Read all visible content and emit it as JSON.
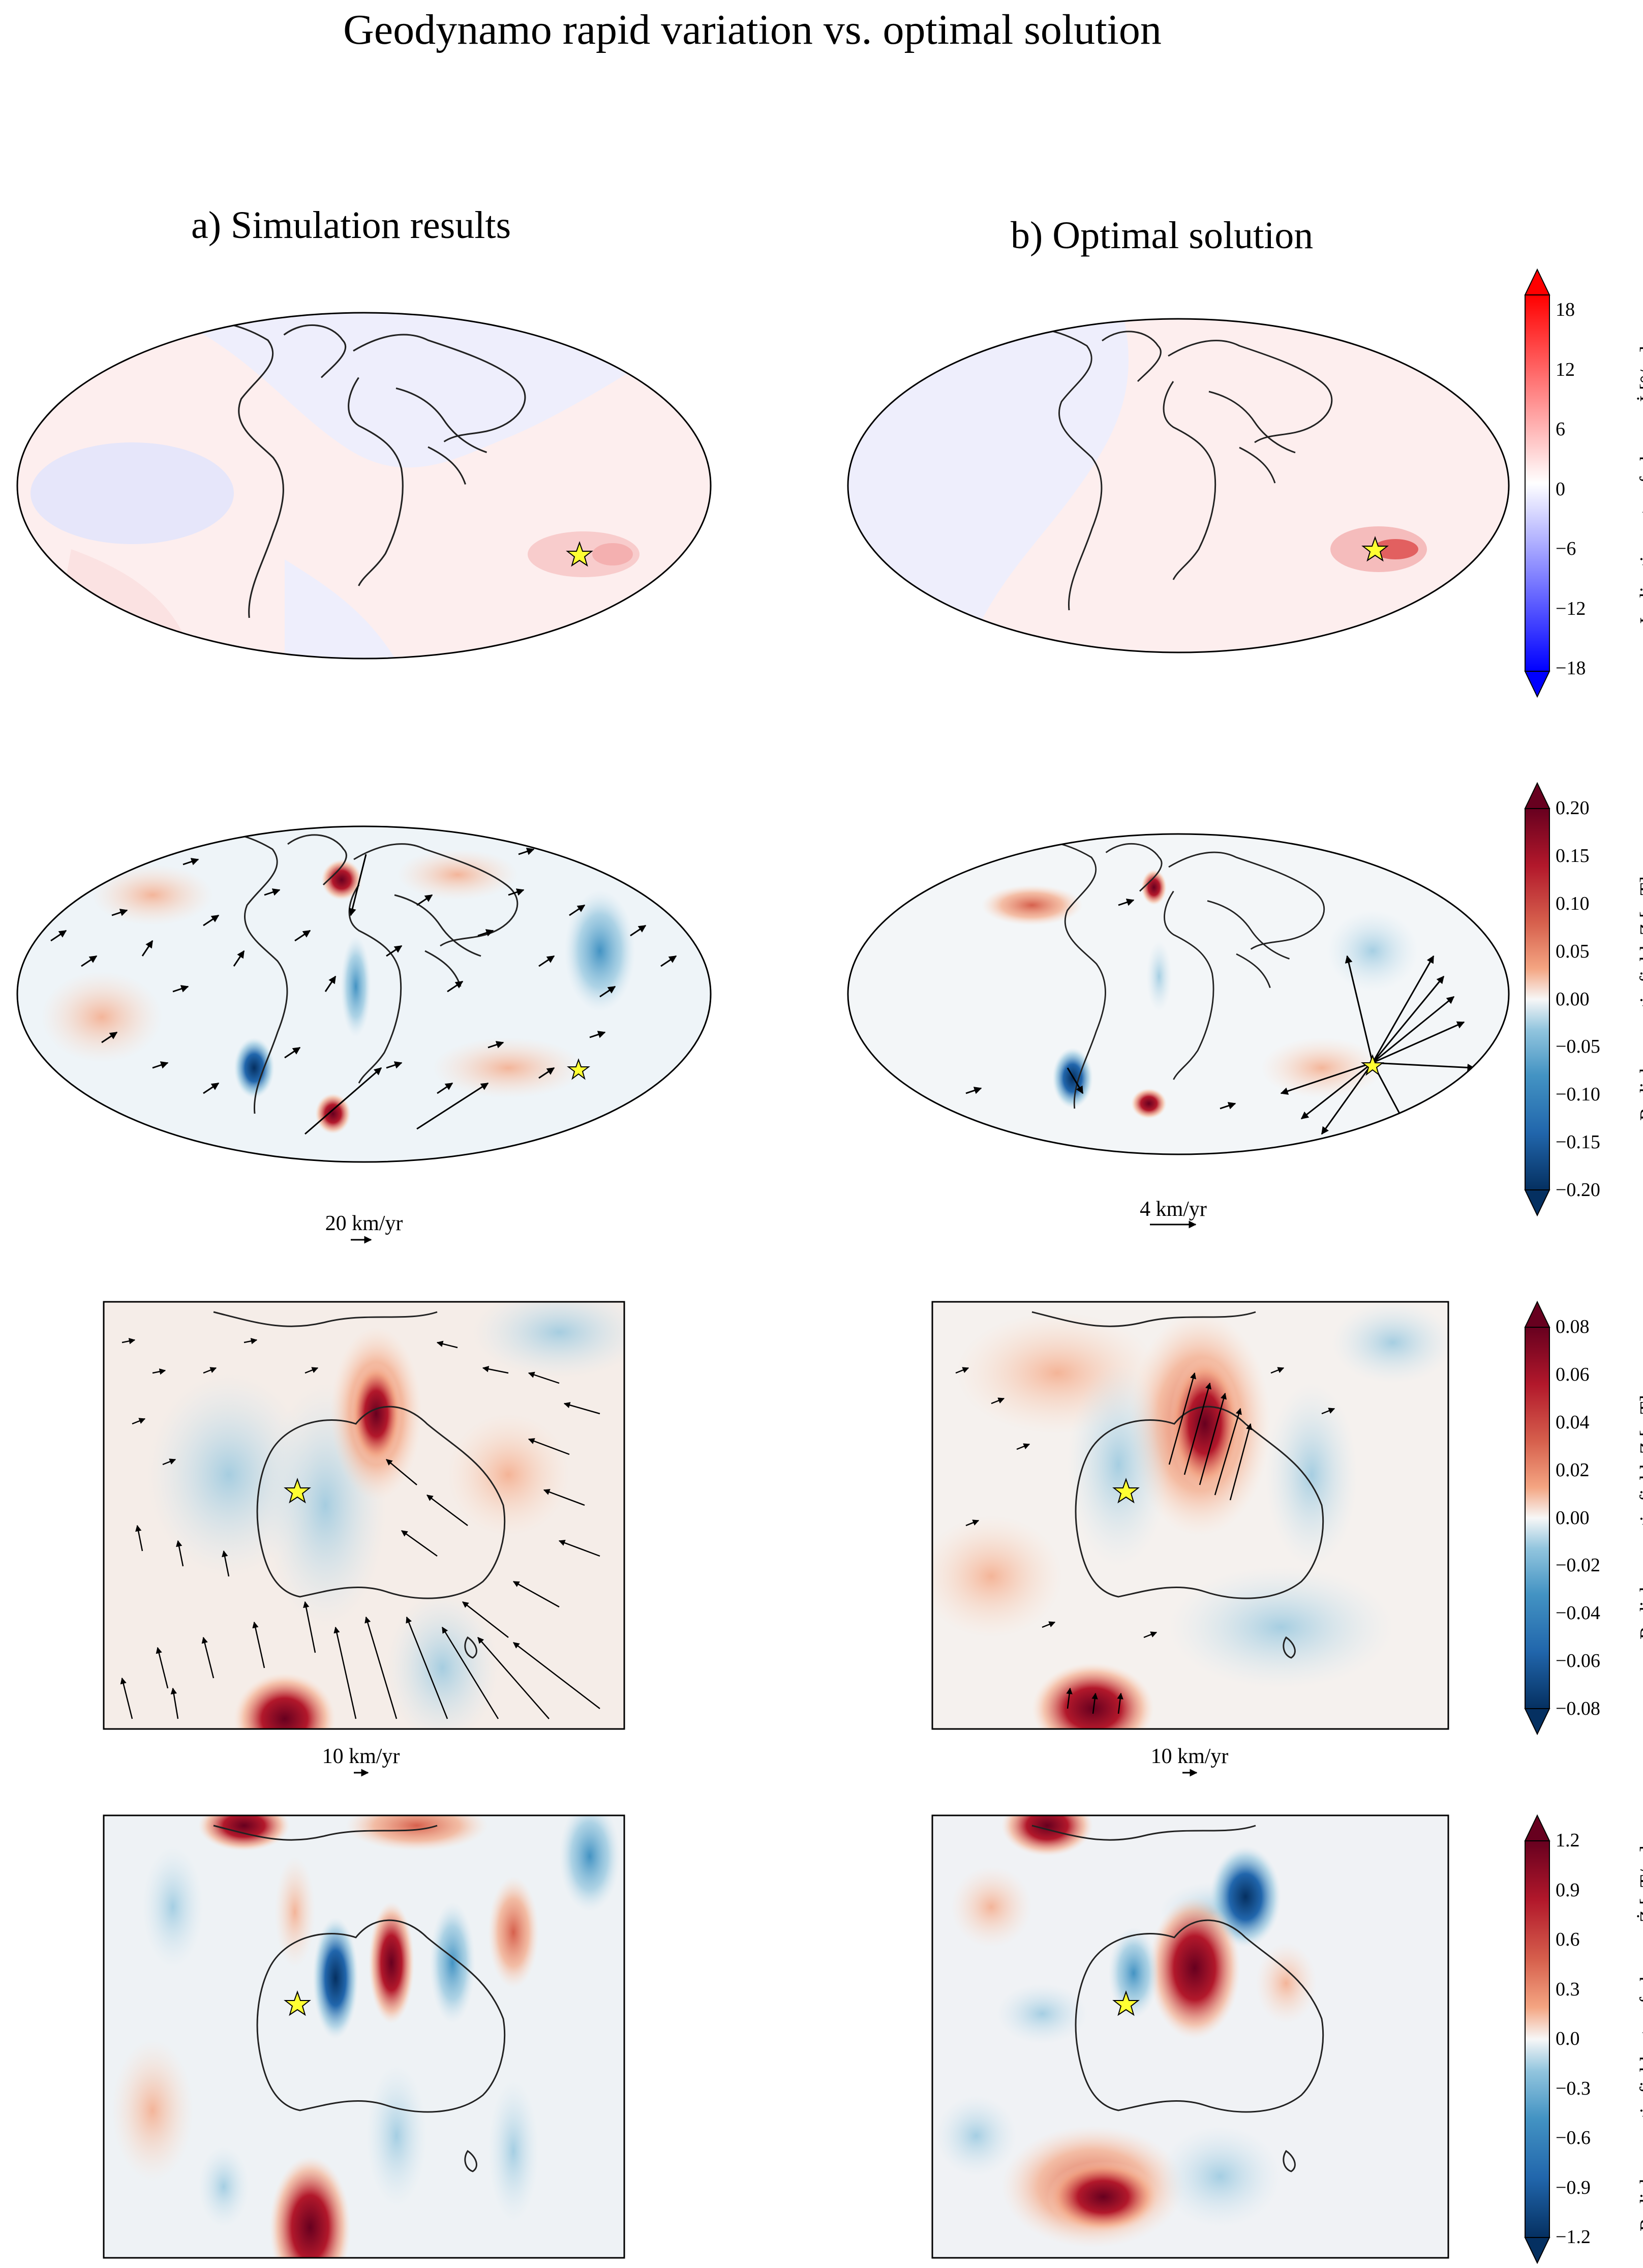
{
  "figure": {
    "title": "Geodynamo rapid variation vs. optimal solution",
    "column_a_title": "a) Simulation results",
    "column_b_title": "b) Optimal solution"
  },
  "rows": [
    {
      "id": "inclination",
      "colorbar": {
        "label": "Inclination rate-of-change, İ [°/yr]",
        "ticks": [
          "18",
          "12",
          "6",
          "0",
          "−6",
          "−12",
          "−18"
        ],
        "cmap": "bwr"
      }
    },
    {
      "id": "radial-global",
      "scale_a": "20 km/yr",
      "scale_b": "4 km/yr",
      "colorbar": {
        "label": "Radial magnetic field, Z  [mT]",
        "ticks": [
          "0.20",
          "0.15",
          "0.10",
          "0.05",
          "0.00",
          "−0.05",
          "−0.10",
          "−0.15",
          "−0.20"
        ],
        "cmap": "RdBu_r"
      }
    },
    {
      "id": "radial-regional",
      "scale_a": "10 km/yr",
      "scale_b": "10 km/yr",
      "colorbar": {
        "label": "Radial magnetic field, Z  [mT]",
        "ticks": [
          "0.08",
          "0.06",
          "0.04",
          "0.02",
          "0.00",
          "−0.02",
          "−0.04",
          "−0.06",
          "−0.08"
        ],
        "cmap": "RdBu_r"
      }
    },
    {
      "id": "sv-regional",
      "colorbar": {
        "label": "Radial magnetic field rate-of-change, Ż  [μT/yr]",
        "ticks": [
          "1.2",
          "0.9",
          "0.6",
          "0.3",
          "0.0",
          "−0.3",
          "−0.6",
          "−0.9",
          "−1.2"
        ],
        "cmap": "RdBu_r"
      }
    }
  ],
  "colors": {
    "star": "#ffff33",
    "red_dark": "#8b0a1e",
    "red_mid": "#d6604d",
    "red_light": "#f4a582",
    "blue_dark": "#0b3c73",
    "blue_mid": "#4393c3",
    "blue_light": "#92c5de",
    "neutral": "#f7f7f7"
  }
}
